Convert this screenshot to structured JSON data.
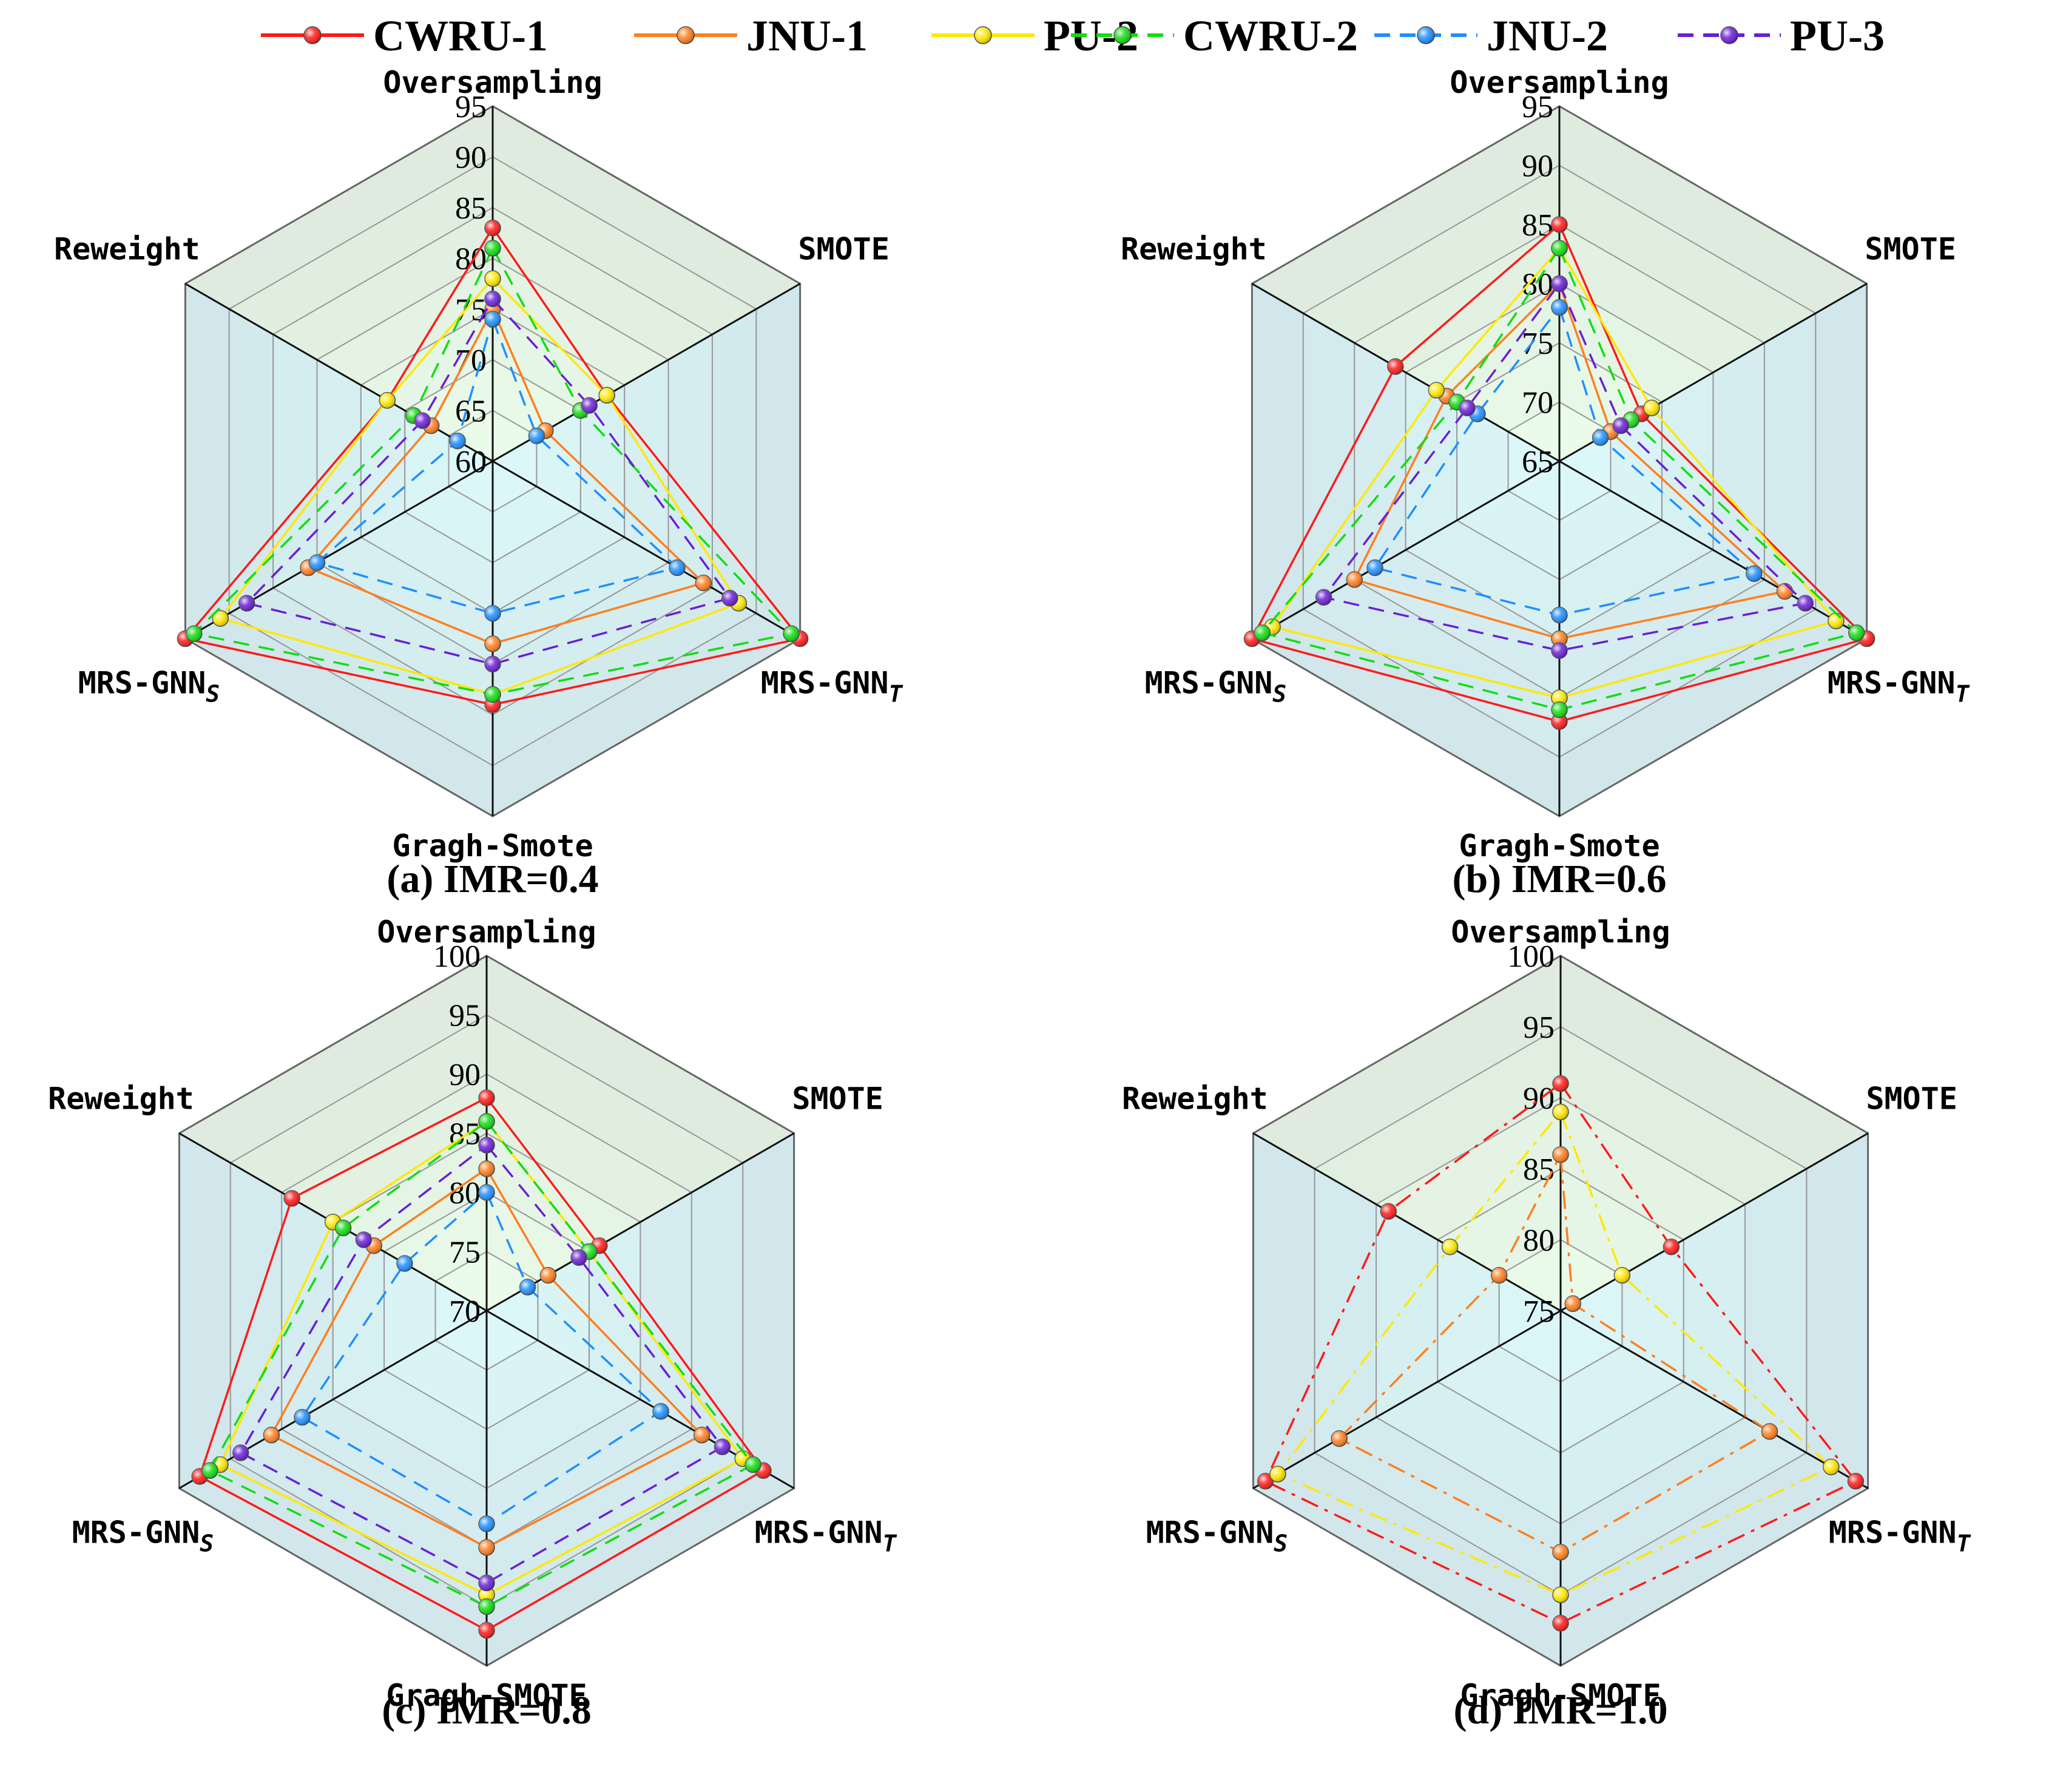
{
  "legend": [
    {
      "name": "CWRU-1",
      "color": "#ff1a1a",
      "dash": "solid"
    },
    {
      "name": "JNU-1",
      "color": "#ff7f1f",
      "dash": "solid"
    },
    {
      "name": "PU-2",
      "color": "#ffe800",
      "dash": "solid"
    },
    {
      "name": "CWRU-2",
      "color": "#11dd11",
      "dash": "dashed"
    },
    {
      "name": "JNU-2",
      "color": "#1f8fff",
      "dash": "dashed"
    },
    {
      "name": "PU-3",
      "color": "#6a1fd6",
      "dash": "dashed"
    }
  ],
  "chart_data": [
    {
      "type": "radar",
      "caption": "(a) IMR=0.4",
      "axes": [
        "Oversampling",
        "SMOTE",
        "MRS-GNN_T",
        "Gragh-Smote",
        "MRS-GNN_S",
        "Reweight"
      ],
      "rlim": [
        60,
        95
      ],
      "ticks": [
        60,
        65,
        70,
        75,
        80,
        85,
        90,
        95
      ],
      "series": [
        {
          "name": "CWRU-1",
          "values": [
            83,
            73,
            95,
            84,
            95,
            72
          ]
        },
        {
          "name": "JNU-1",
          "values": [
            75,
            66,
            84,
            78,
            81,
            67
          ]
        },
        {
          "name": "PU-2",
          "values": [
            78,
            73,
            88,
            83,
            91,
            72
          ]
        },
        {
          "name": "CWRU-2",
          "values": [
            81,
            70,
            94,
            83,
            94,
            69
          ]
        },
        {
          "name": "JNU-2",
          "values": [
            74,
            65,
            81,
            75,
            80,
            64
          ]
        },
        {
          "name": "PU-3",
          "values": [
            76,
            71,
            87,
            80,
            88,
            68
          ]
        }
      ]
    },
    {
      "type": "radar",
      "caption": "(b) IMR=0.6",
      "axes": [
        "Oversampling",
        "SMOTE",
        "MRS-GNN_T",
        "Gragh-Smote",
        "MRS-GNN_S",
        "Reweight"
      ],
      "rlim": [
        65,
        95
      ],
      "ticks": [
        65,
        70,
        75,
        80,
        85,
        90,
        95
      ],
      "series": [
        {
          "name": "CWRU-1",
          "values": [
            85,
            73,
            95,
            87,
            95,
            81
          ]
        },
        {
          "name": "JNU-1",
          "values": [
            80,
            70,
            87,
            80,
            85,
            76
          ]
        },
        {
          "name": "PU-2",
          "values": [
            83,
            74,
            92,
            85,
            93,
            77
          ]
        },
        {
          "name": "CWRU-2",
          "values": [
            83,
            72,
            94,
            86,
            94,
            75
          ]
        },
        {
          "name": "JNU-2",
          "values": [
            78,
            69,
            84,
            78,
            83,
            73
          ]
        },
        {
          "name": "PU-3",
          "values": [
            80,
            71,
            89,
            81,
            88,
            74
          ]
        }
      ]
    },
    {
      "type": "radar",
      "caption": "(c) IMR=0.8",
      "axes": [
        "Oversampling",
        "SMOTE",
        "MRS-GNN_T",
        "Gragh-SMOTE",
        "MRS-GNN_S",
        "Reweight"
      ],
      "rlim": [
        70,
        100
      ],
      "ticks": [
        70,
        75,
        80,
        85,
        90,
        95,
        100
      ],
      "series": [
        {
          "name": "CWRU-1",
          "values": [
            88,
            81,
            97,
            97,
            98,
            89
          ]
        },
        {
          "name": "JNU-1",
          "values": [
            82,
            76,
            91,
            90,
            91,
            81
          ]
        },
        {
          "name": "PU-2",
          "values": [
            86,
            80,
            95,
            94,
            96,
            85
          ]
        },
        {
          "name": "CWRU-2",
          "values": [
            86,
            80,
            96,
            95,
            97,
            84
          ]
        },
        {
          "name": "JNU-2",
          "values": [
            80,
            74,
            87,
            88,
            88,
            78
          ]
        },
        {
          "name": "PU-3",
          "values": [
            84,
            79,
            93,
            93,
            94,
            82
          ]
        }
      ]
    },
    {
      "type": "radar",
      "caption": "(d) IMR=1.0",
      "axes": [
        "Oversampling",
        "SMOTE",
        "MRS-GNN_T",
        "Gragh-SMOTE",
        "MRS-GNN_S",
        "Reweight"
      ],
      "rlim": [
        75,
        100
      ],
      "ticks": [
        75,
        80,
        85,
        90,
        95,
        100
      ],
      "series": [
        {
          "name": "CWRU-1",
          "dash": "dashdot",
          "values": [
            91,
            84,
            99,
            97,
            99,
            89
          ]
        },
        {
          "name": "JNU-1",
          "dash": "dashdot",
          "values": [
            86,
            76,
            92,
            92,
            93,
            80
          ]
        },
        {
          "name": "PU-2",
          "dash": "dashdot",
          "values": [
            89,
            80,
            97,
            95,
            98,
            84
          ]
        }
      ]
    }
  ]
}
